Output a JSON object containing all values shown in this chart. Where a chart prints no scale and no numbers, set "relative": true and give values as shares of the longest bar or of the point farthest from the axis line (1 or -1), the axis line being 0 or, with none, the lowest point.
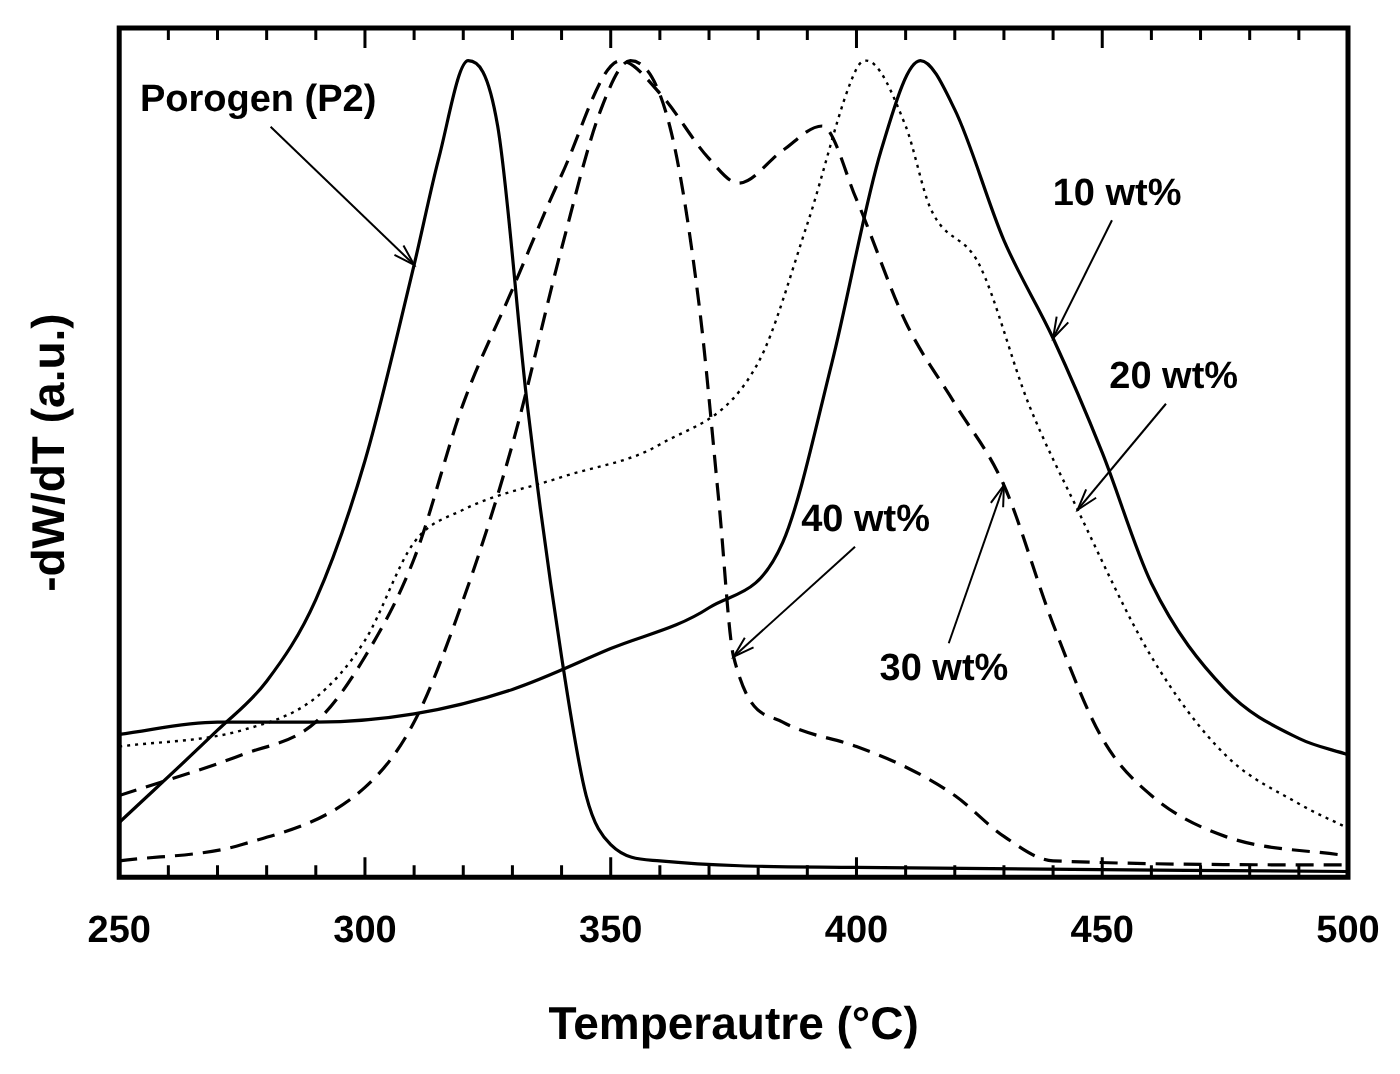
{
  "chart_data": {
    "type": "line",
    "xlabel": "Temperautre (°C)",
    "ylabel": "-dW/dT (a.u.)",
    "relative": true,
    "xlim": [
      250,
      500
    ],
    "xticks": [
      250,
      {
        "value": 260,
        "label": null
      },
      {
        "value": 270,
        "label": null
      },
      {
        "value": 280,
        "label": null
      },
      {
        "value": 290,
        "label": null
      },
      300,
      {
        "value": 310,
        "label": null
      },
      {
        "value": 320,
        "label": null
      },
      {
        "value": 330,
        "label": null
      },
      {
        "value": 340,
        "label": null
      },
      350,
      {
        "value": 360,
        "label": null
      },
      {
        "value": 370,
        "label": null
      },
      {
        "value": 380,
        "label": null
      },
      {
        "value": 390,
        "label": null
      },
      400,
      {
        "value": 410,
        "label": null
      },
      {
        "value": 420,
        "label": null
      },
      {
        "value": 430,
        "label": null
      },
      {
        "value": 440,
        "label": null
      },
      450,
      {
        "value": 460,
        "label": null
      },
      {
        "value": 470,
        "label": null
      },
      {
        "value": 480,
        "label": null
      },
      {
        "value": 490,
        "label": null
      },
      500
    ],
    "grid": false,
    "marker": "none",
    "annotations": [
      {
        "text": "Porogen (P2)",
        "x": 310,
        "y": 0.75
      },
      {
        "text": "10 wt%",
        "x": 440,
        "y": 0.66
      },
      {
        "text": "20 wt%",
        "x": 445,
        "y": 0.45
      },
      {
        "text": "30 wt%",
        "x": 430,
        "y": 0.48
      },
      {
        "text": "40 wt%",
        "x": 375,
        "y": 0.27
      }
    ],
    "series": [
      {
        "color": "#000000",
        "line_style": "solid",
        "x": [
          250,
          270,
          280,
          290,
          300,
          310,
          315,
          321,
          327,
          333,
          340,
          345,
          350,
          360,
          400,
          500
        ],
        "values": [
          0.067,
          0.18,
          0.24,
          0.34,
          0.51,
          0.75,
          0.88,
          1.0,
          0.92,
          0.58,
          0.27,
          0.1,
          0.04,
          0.02,
          0.012,
          0.007
        ]
      },
      {
        "color": "#000000",
        "line_style": "solid",
        "x": [
          250,
          270,
          290,
          310,
          330,
          350,
          370,
          385,
          395,
          405,
          413,
          420,
          430,
          440,
          450,
          460,
          475,
          490,
          500
        ],
        "values": [
          0.175,
          0.19,
          0.19,
          0.2,
          0.23,
          0.28,
          0.33,
          0.41,
          0.63,
          0.89,
          1.0,
          0.94,
          0.78,
          0.66,
          0.52,
          0.36,
          0.23,
          0.17,
          0.15
        ]
      },
      {
        "color": "#000000",
        "line_style": "dotted",
        "x": [
          250,
          275,
          290,
          300,
          310,
          320,
          340,
          360,
          380,
          390,
          400,
          402,
          410,
          415,
          425,
          435,
          445,
          460,
          475,
          490,
          500
        ],
        "values": [
          0.16,
          0.18,
          0.22,
          0.29,
          0.41,
          0.45,
          0.49,
          0.53,
          0.63,
          0.8,
          0.99,
          1.0,
          0.92,
          0.82,
          0.75,
          0.58,
          0.45,
          0.27,
          0.15,
          0.09,
          0.06
        ]
      },
      {
        "color": "#000000",
        "line_style": "dashed",
        "x": [
          250,
          275,
          290,
          300,
          310,
          320,
          330,
          340,
          352,
          360,
          370,
          376,
          385,
          393,
          400,
          410,
          420,
          430,
          440,
          450,
          460,
          475,
          500
        ],
        "values": [
          0.1,
          0.15,
          0.19,
          0.27,
          0.39,
          0.58,
          0.72,
          0.86,
          1.0,
          0.96,
          0.88,
          0.85,
          0.89,
          0.92,
          0.83,
          0.68,
          0.58,
          0.48,
          0.31,
          0.17,
          0.1,
          0.05,
          0.026
        ]
      },
      {
        "color": "#000000",
        "line_style": "dashed",
        "x": [
          250,
          275,
          300,
          310,
          320,
          330,
          340,
          348,
          354,
          362,
          368,
          372,
          375,
          385,
          400,
          410,
          420,
          430,
          440,
          500
        ],
        "values": [
          0.02,
          0.04,
          0.11,
          0.19,
          0.34,
          0.53,
          0.77,
          0.94,
          1.0,
          0.92,
          0.7,
          0.46,
          0.27,
          0.19,
          0.16,
          0.135,
          0.1,
          0.05,
          0.02,
          0.015
        ]
      }
    ]
  }
}
